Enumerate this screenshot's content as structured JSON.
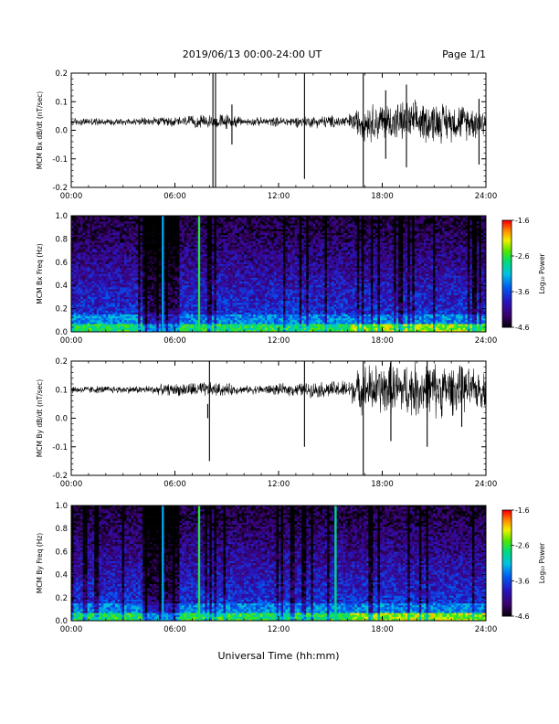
{
  "header": {
    "title": "2019/06/13  00:00-24:00 UT",
    "page": "Page 1/1"
  },
  "footer": {
    "xlabel": "Universal Time (hh:mm)"
  },
  "chart_data": [
    {
      "type": "line",
      "ylabel": "MCM Bx dB/dt (nT/sec)",
      "xlim": [
        0,
        24
      ],
      "ylim": [
        -0.2,
        0.2
      ],
      "xticks": [
        "00:00",
        "06:00",
        "12:00",
        "18:00",
        "24:00"
      ],
      "yticks": [
        "0.2",
        "0.1",
        "0.0",
        "-0.1",
        "-0.2"
      ],
      "baseline": 0.03,
      "series": [
        {
          "noise": [
            [
              0,
              0.012
            ],
            [
              4,
              0.012
            ],
            [
              7.5,
              0.02
            ],
            [
              9,
              0.025
            ],
            [
              10,
              0.012
            ],
            [
              16,
              0.022
            ],
            [
              17,
              0.06
            ],
            [
              21,
              0.065
            ],
            [
              24,
              0.05
            ]
          ],
          "spikes": [
            [
              8.2,
              0.2,
              -0.2
            ],
            [
              8.35,
              0.2,
              -0.2
            ],
            [
              9.3,
              0.09,
              -0.05
            ],
            [
              13.5,
              0.2,
              -0.17
            ],
            [
              16.9,
              0.2,
              -0.2
            ],
            [
              18.2,
              0.14,
              -0.1
            ],
            [
              19.4,
              0.16,
              -0.13
            ],
            [
              23.6,
              0.11,
              -0.12
            ]
          ]
        }
      ]
    },
    {
      "type": "heatmap",
      "ylabel": "MCM Bx Freq (Hz)",
      "xlim": [
        0,
        24
      ],
      "ylim": [
        0,
        1.0
      ],
      "xticks": [
        "00:00",
        "06:00",
        "12:00",
        "18:00",
        "24:00"
      ],
      "yticks": [
        "1.0",
        "0.8",
        "0.6",
        "0.4",
        "0.2",
        "0.0"
      ],
      "colorbar": {
        "label": "Log₁₀ Power",
        "min": -4.6,
        "max": -1.6,
        "ticks": [
          "-1.6",
          "-2.6",
          "-3.6",
          "-4.6"
        ]
      },
      "lines": [
        [
          7.4,
          -2.6
        ],
        [
          5.3,
          -3.2
        ]
      ]
    },
    {
      "type": "line",
      "ylabel": "MCM By dB/dt (nT/sec)",
      "xlim": [
        0,
        24
      ],
      "ylim": [
        -0.2,
        0.2
      ],
      "xticks": [
        "00:00",
        "06:00",
        "12:00",
        "18:00",
        "24:00"
      ],
      "yticks": [
        "0.2",
        "0.1",
        "0.0",
        "-0.1",
        "-0.2"
      ],
      "baseline": 0.1,
      "series": [
        {
          "noise": [
            [
              0,
              0.012
            ],
            [
              4,
              0.012
            ],
            [
              7.5,
              0.025
            ],
            [
              9,
              0.02
            ],
            [
              10,
              0.012
            ],
            [
              16,
              0.03
            ],
            [
              17,
              0.08
            ],
            [
              21,
              0.09
            ],
            [
              24,
              0.055
            ]
          ],
          "spikes": [
            [
              8.0,
              0.2,
              -0.15
            ],
            [
              7.9,
              0.05,
              0.0
            ],
            [
              13.5,
              0.2,
              -0.1
            ],
            [
              16.9,
              0.2,
              -0.2
            ],
            [
              18.5,
              0.2,
              -0.08
            ],
            [
              20.6,
              0.2,
              -0.1
            ],
            [
              22.6,
              0.18,
              -0.03
            ]
          ]
        }
      ]
    },
    {
      "type": "heatmap",
      "ylabel": "MCM By Freq (Hz)",
      "xlim": [
        0,
        24
      ],
      "ylim": [
        0,
        1.0
      ],
      "xticks": [
        "00:00",
        "06:00",
        "12:00",
        "18:00",
        "24:00"
      ],
      "yticks": [
        "1.0",
        "0.8",
        "0.6",
        "0.4",
        "0.2",
        "0.0"
      ],
      "colorbar": {
        "label": "Log₁₀ Power",
        "min": -4.6,
        "max": -1.6,
        "ticks": [
          "-1.6",
          "-2.6",
          "-3.6",
          "-4.6"
        ]
      },
      "lines": [
        [
          7.4,
          -2.6
        ],
        [
          5.3,
          -3.2
        ],
        [
          15.3,
          -2.8
        ]
      ]
    }
  ]
}
